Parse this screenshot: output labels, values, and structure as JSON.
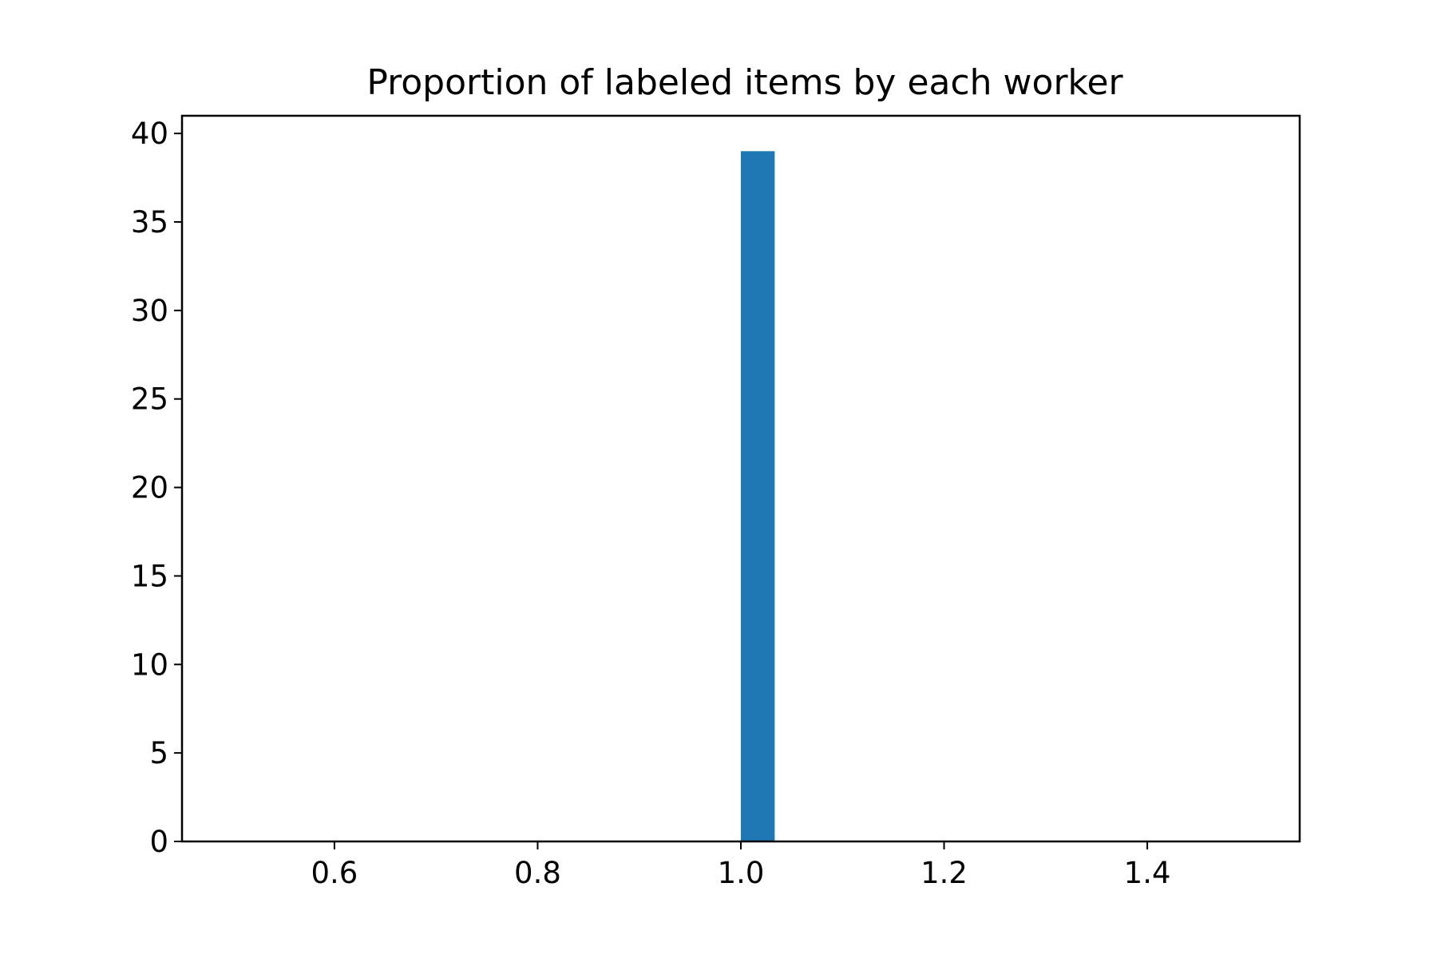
{
  "chart_data": {
    "type": "bar",
    "title": "Proportion of labeled items by each worker",
    "xlabel": "",
    "ylabel": "",
    "xlim": [
      0.45,
      1.55
    ],
    "ylim": [
      0,
      41
    ],
    "x_ticks": [
      0.6,
      0.8,
      1.0,
      1.2,
      1.4
    ],
    "x_tick_labels": [
      "0.6",
      "0.8",
      "1.0",
      "1.2",
      "1.4"
    ],
    "y_ticks": [
      0,
      5,
      10,
      15,
      20,
      25,
      30,
      35,
      40
    ],
    "y_tick_labels": [
      "0",
      "5",
      "10",
      "15",
      "20",
      "25",
      "30",
      "35",
      "40"
    ],
    "bars": [
      {
        "x_start": 1.0,
        "x_end": 1.0333,
        "value": 39
      }
    ],
    "grid": false,
    "legend": "none",
    "bar_color": "#1f77b4"
  }
}
